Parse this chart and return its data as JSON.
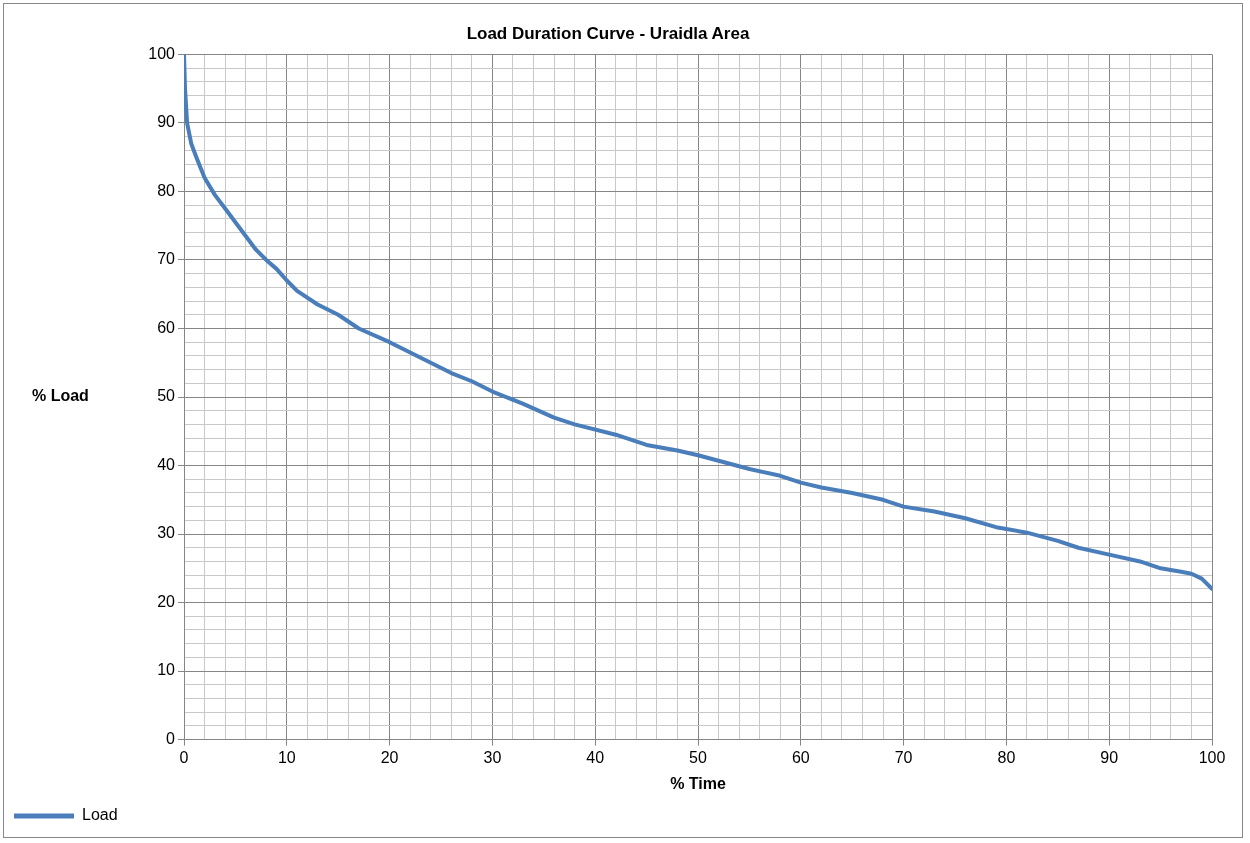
{
  "chart_data": {
    "type": "line",
    "title": "Load Duration Curve - Uraidla Area",
    "xlabel": "% Time",
    "ylabel": "% Load",
    "xlim": [
      0,
      100
    ],
    "ylim": [
      0,
      100
    ],
    "xticks": [
      0,
      {
        "value": 2,
        "label": null
      },
      {
        "value": 4,
        "label": null
      },
      {
        "value": 6,
        "label": null
      },
      {
        "value": 8,
        "label": null
      },
      10,
      {
        "value": 12,
        "label": null
      },
      {
        "value": 14,
        "label": null
      },
      {
        "value": 16,
        "label": null
      },
      {
        "value": 18,
        "label": null
      },
      20,
      {
        "value": 22,
        "label": null
      },
      {
        "value": 24,
        "label": null
      },
      {
        "value": 26,
        "label": null
      },
      {
        "value": 28,
        "label": null
      },
      30,
      {
        "value": 32,
        "label": null
      },
      {
        "value": 34,
        "label": null
      },
      {
        "value": 36,
        "label": null
      },
      {
        "value": 38,
        "label": null
      },
      40,
      {
        "value": 42,
        "label": null
      },
      {
        "value": 44,
        "label": null
      },
      {
        "value": 46,
        "label": null
      },
      {
        "value": 48,
        "label": null
      },
      50,
      {
        "value": 52,
        "label": null
      },
      {
        "value": 54,
        "label": null
      },
      {
        "value": 56,
        "label": null
      },
      {
        "value": 58,
        "label": null
      },
      60,
      {
        "value": 62,
        "label": null
      },
      {
        "value": 64,
        "label": null
      },
      {
        "value": 66,
        "label": null
      },
      {
        "value": 68,
        "label": null
      },
      70,
      {
        "value": 72,
        "label": null
      },
      {
        "value": 74,
        "label": null
      },
      {
        "value": 76,
        "label": null
      },
      {
        "value": 78,
        "label": null
      },
      80,
      {
        "value": 82,
        "label": null
      },
      {
        "value": 84,
        "label": null
      },
      {
        "value": 86,
        "label": null
      },
      {
        "value": 88,
        "label": null
      },
      90,
      {
        "value": 92,
        "label": null
      },
      {
        "value": 94,
        "label": null
      },
      {
        "value": 96,
        "label": null
      },
      {
        "value": 98,
        "label": null
      },
      100
    ],
    "yticks": [
      0,
      {
        "value": 2,
        "label": null
      },
      {
        "value": 4,
        "label": null
      },
      {
        "value": 6,
        "label": null
      },
      {
        "value": 8,
        "label": null
      },
      10,
      {
        "value": 12,
        "label": null
      },
      {
        "value": 14,
        "label": null
      },
      {
        "value": 16,
        "label": null
      },
      {
        "value": 18,
        "label": null
      },
      20,
      {
        "value": 22,
        "label": null
      },
      {
        "value": 24,
        "label": null
      },
      {
        "value": 26,
        "label": null
      },
      {
        "value": 28,
        "label": null
      },
      30,
      {
        "value": 32,
        "label": null
      },
      {
        "value": 34,
        "label": null
      },
      {
        "value": 36,
        "label": null
      },
      {
        "value": 38,
        "label": null
      },
      40,
      {
        "value": 42,
        "label": null
      },
      {
        "value": 44,
        "label": null
      },
      {
        "value": 46,
        "label": null
      },
      {
        "value": 48,
        "label": null
      },
      50,
      {
        "value": 52,
        "label": null
      },
      {
        "value": 54,
        "label": null
      },
      {
        "value": 56,
        "label": null
      },
      {
        "value": 58,
        "label": null
      },
      60,
      {
        "value": 62,
        "label": null
      },
      {
        "value": 64,
        "label": null
      },
      {
        "value": 66,
        "label": null
      },
      {
        "value": 68,
        "label": null
      },
      70,
      {
        "value": 72,
        "label": null
      },
      {
        "value": 74,
        "label": null
      },
      {
        "value": 76,
        "label": null
      },
      {
        "value": 78,
        "label": null
      },
      80,
      {
        "value": 82,
        "label": null
      },
      {
        "value": 84,
        "label": null
      },
      {
        "value": 86,
        "label": null
      },
      {
        "value": 88,
        "label": null
      },
      90,
      {
        "value": 92,
        "label": null
      },
      {
        "value": 94,
        "label": null
      },
      {
        "value": 96,
        "label": null
      },
      {
        "value": 98,
        "label": null
      },
      100
    ],
    "grid": true,
    "legend": "bottom left",
    "marker": "none",
    "line_style": "solid",
    "series": [
      {
        "name": "Load",
        "color": "#4a7ebb",
        "x": [
          0,
          0.1,
          0.3,
          0.7,
          1.2,
          2,
          3,
          4,
          5,
          6,
          7,
          8,
          9,
          10,
          11,
          13,
          15,
          17,
          20,
          22,
          24,
          26,
          28,
          30,
          33,
          36,
          38,
          42,
          45,
          48,
          50,
          55,
          58,
          60,
          62,
          65,
          68,
          70,
          73,
          76,
          79,
          82,
          85,
          87,
          90,
          93,
          95,
          97,
          98,
          99,
          100
        ],
        "values": [
          100,
          95,
          90,
          87,
          85,
          82,
          79.5,
          77.5,
          75.5,
          73.5,
          71.5,
          70,
          68.7,
          67,
          65.5,
          63.5,
          62,
          60,
          58,
          56.5,
          55,
          53.5,
          52.3,
          50.8,
          49,
          47,
          46,
          44.5,
          43,
          42.2,
          41.5,
          39.5,
          38.5,
          37.5,
          36.8,
          36,
          35,
          34,
          33.3,
          32.3,
          31,
          30.2,
          29,
          28,
          27,
          26,
          25,
          24.5,
          24.2,
          23.5,
          22
        ]
      }
    ]
  }
}
